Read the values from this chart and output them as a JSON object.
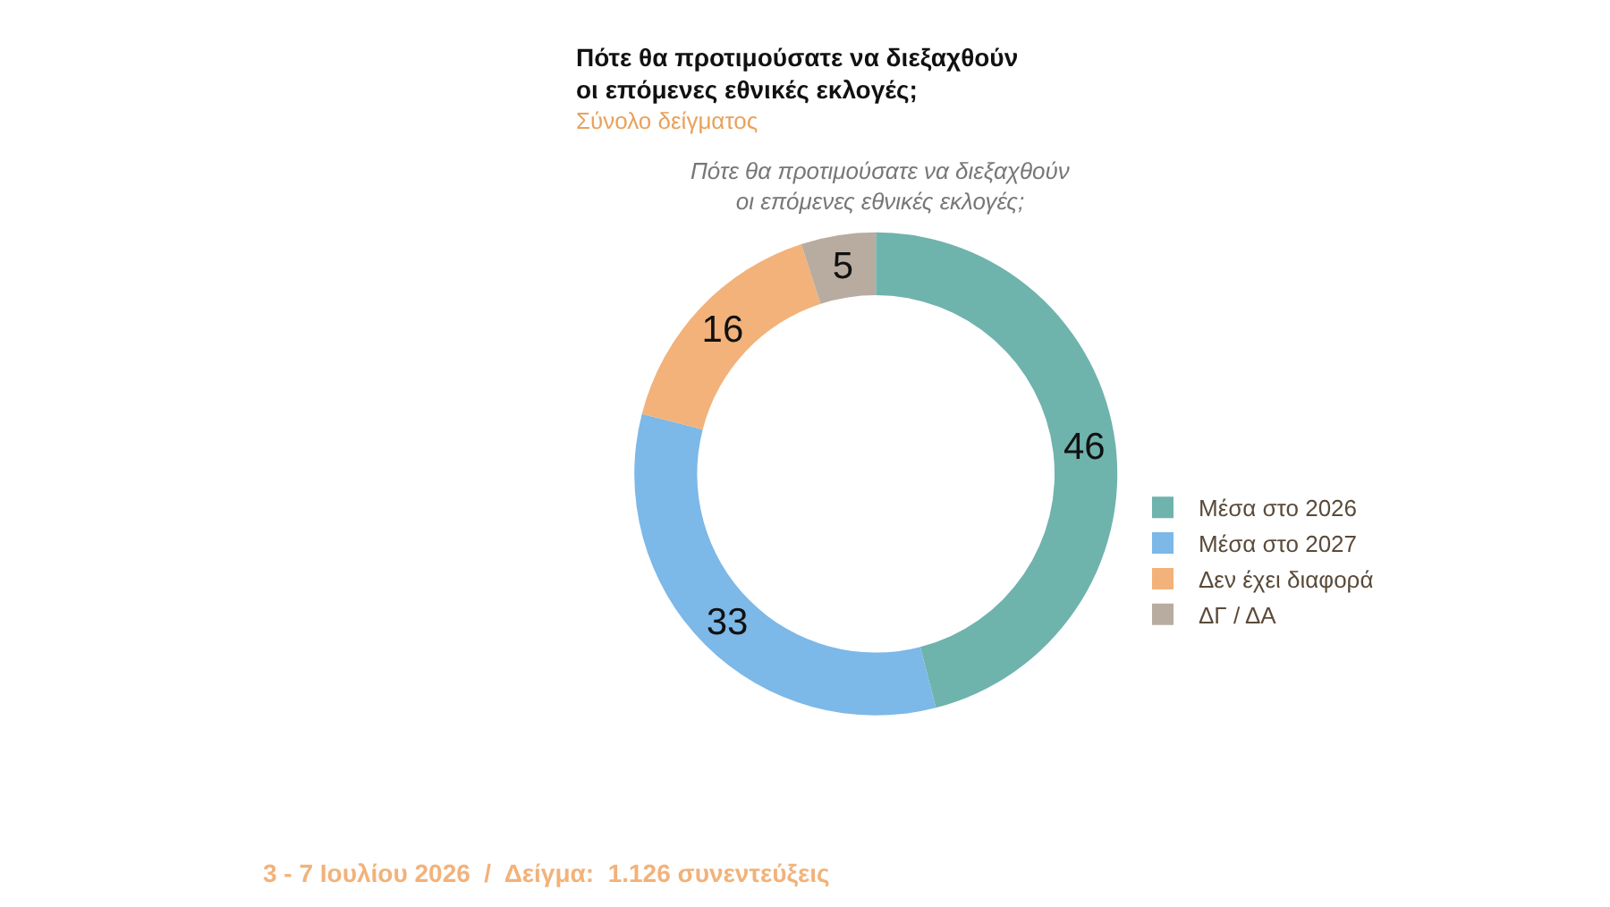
{
  "chart_data": {
    "type": "donut",
    "title": "Πότε θα προτιμούσατε να διεξαχθούν οι επόμενες εθνικές εκλογές;",
    "subtitle": "Σύνολο δείγματος",
    "categories": [
      "Μέσα στο 2026",
      "Μέσα στο 2027",
      "Δεν έχει διαφορά",
      "ΔΓ / ΔΑ"
    ],
    "values": [
      46,
      33,
      16,
      5
    ],
    "colors": [
      "#6fb3ad",
      "#7cb8e8",
      "#f2b27a",
      "#b8aca0"
    ],
    "data_labels": true,
    "legend": "right",
    "annotations": [
      "Πότε θα προτιμούσατε να διεξαχθούν οι επόμενες εθνικές εκλογές;",
      "3 - 7 Ιουλίου 2026  /  Δείγμα:  1.126 συνεντεύξεις"
    ]
  }
}
